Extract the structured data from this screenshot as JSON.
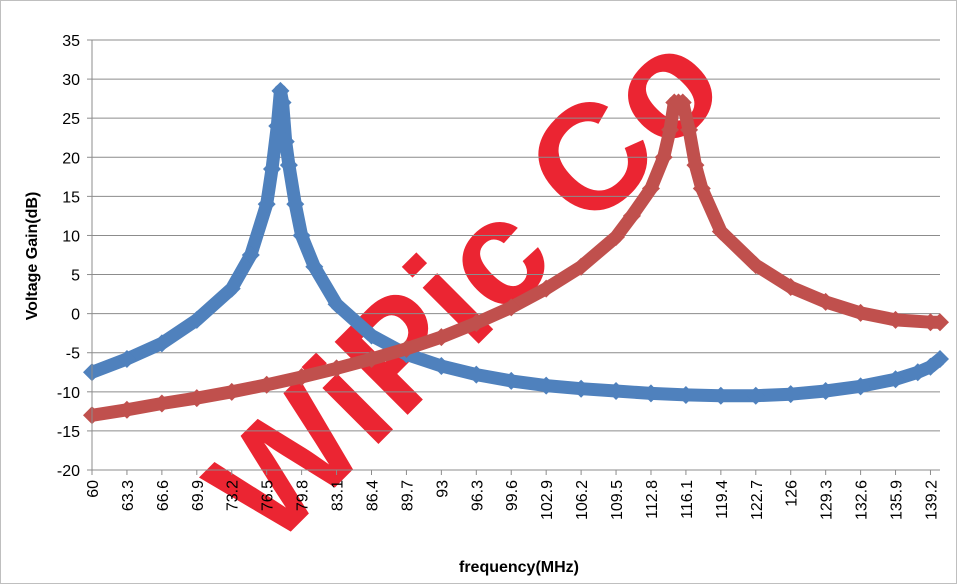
{
  "chart_data": {
    "type": "line",
    "xlabel": "frequency(MHz)",
    "ylabel": "Voltage Gain(dB)",
    "ylim": [
      -20,
      35
    ],
    "ytick_step": 5,
    "yticks": [
      "-20",
      "-15",
      "-10",
      "-5",
      "0",
      "5",
      "10",
      "15",
      "20",
      "25",
      "30",
      "35"
    ],
    "xlim": [
      60,
      140.1
    ],
    "xticks": [
      "60",
      "63.3",
      "66.6",
      "69.9",
      "73.2",
      "76.5",
      "79.8",
      "83.1",
      "86.4",
      "89.7",
      "93",
      "96.3",
      "99.6",
      "102.9",
      "106.2",
      "109.5",
      "112.8",
      "116.1",
      "119.4",
      "122.7",
      "126",
      "129.3",
      "132.6",
      "135.9",
      "139.2"
    ],
    "grid": true,
    "legend": "none",
    "series": [
      {
        "color": "#4f81bd",
        "x": [
          60,
          63.3,
          66.6,
          69.9,
          73.2,
          75,
          76.5,
          77,
          77.5,
          77.8,
          78,
          78.3,
          78.6,
          79.2,
          79.8,
          81,
          83.1,
          86.4,
          89.7,
          93,
          96.3,
          99.6,
          102.9,
          106.2,
          109.5,
          112.8,
          116.1,
          119.4,
          122.7,
          126,
          129.3,
          132.6,
          135.9,
          138,
          139.2,
          140.1
        ],
        "y": [
          -7.5,
          -5.8,
          -3.8,
          -0.8,
          3.2,
          7.5,
          14,
          18.5,
          24,
          28.5,
          27,
          22,
          19,
          14,
          10,
          6,
          1.2,
          -2.8,
          -5.2,
          -6.7,
          -7.8,
          -8.6,
          -9.2,
          -9.6,
          -9.9,
          -10.2,
          -10.4,
          -10.5,
          -10.5,
          -10.3,
          -9.9,
          -9.3,
          -8.4,
          -7.5,
          -6.8,
          -5.8
        ]
      },
      {
        "color": "#c0504d",
        "x": [
          60,
          63.3,
          66.6,
          69.9,
          73.2,
          76.5,
          79.8,
          83.1,
          86.4,
          89.7,
          93,
          96.3,
          99.6,
          102.9,
          106.2,
          109.5,
          111,
          112.8,
          114,
          114.6,
          115,
          115.4,
          115.8,
          116.4,
          117,
          117.6,
          119.4,
          122.7,
          126,
          129.3,
          132.6,
          135.9,
          139.2,
          140.1
        ],
        "y": [
          -13,
          -12.3,
          -11.5,
          -10.8,
          -10,
          -9.1,
          -8.1,
          -7,
          -5.8,
          -4.5,
          -3,
          -1.2,
          0.8,
          3.2,
          6,
          9.8,
          12.5,
          16,
          20,
          23.5,
          27,
          27,
          27,
          23.5,
          19,
          16,
          10.5,
          6.2,
          3.4,
          1.5,
          0.1,
          -0.8,
          -1.1,
          -1.1
        ]
      }
    ]
  },
  "watermark": {
    "text": "WiPic Co",
    "color": "#e8000f"
  }
}
